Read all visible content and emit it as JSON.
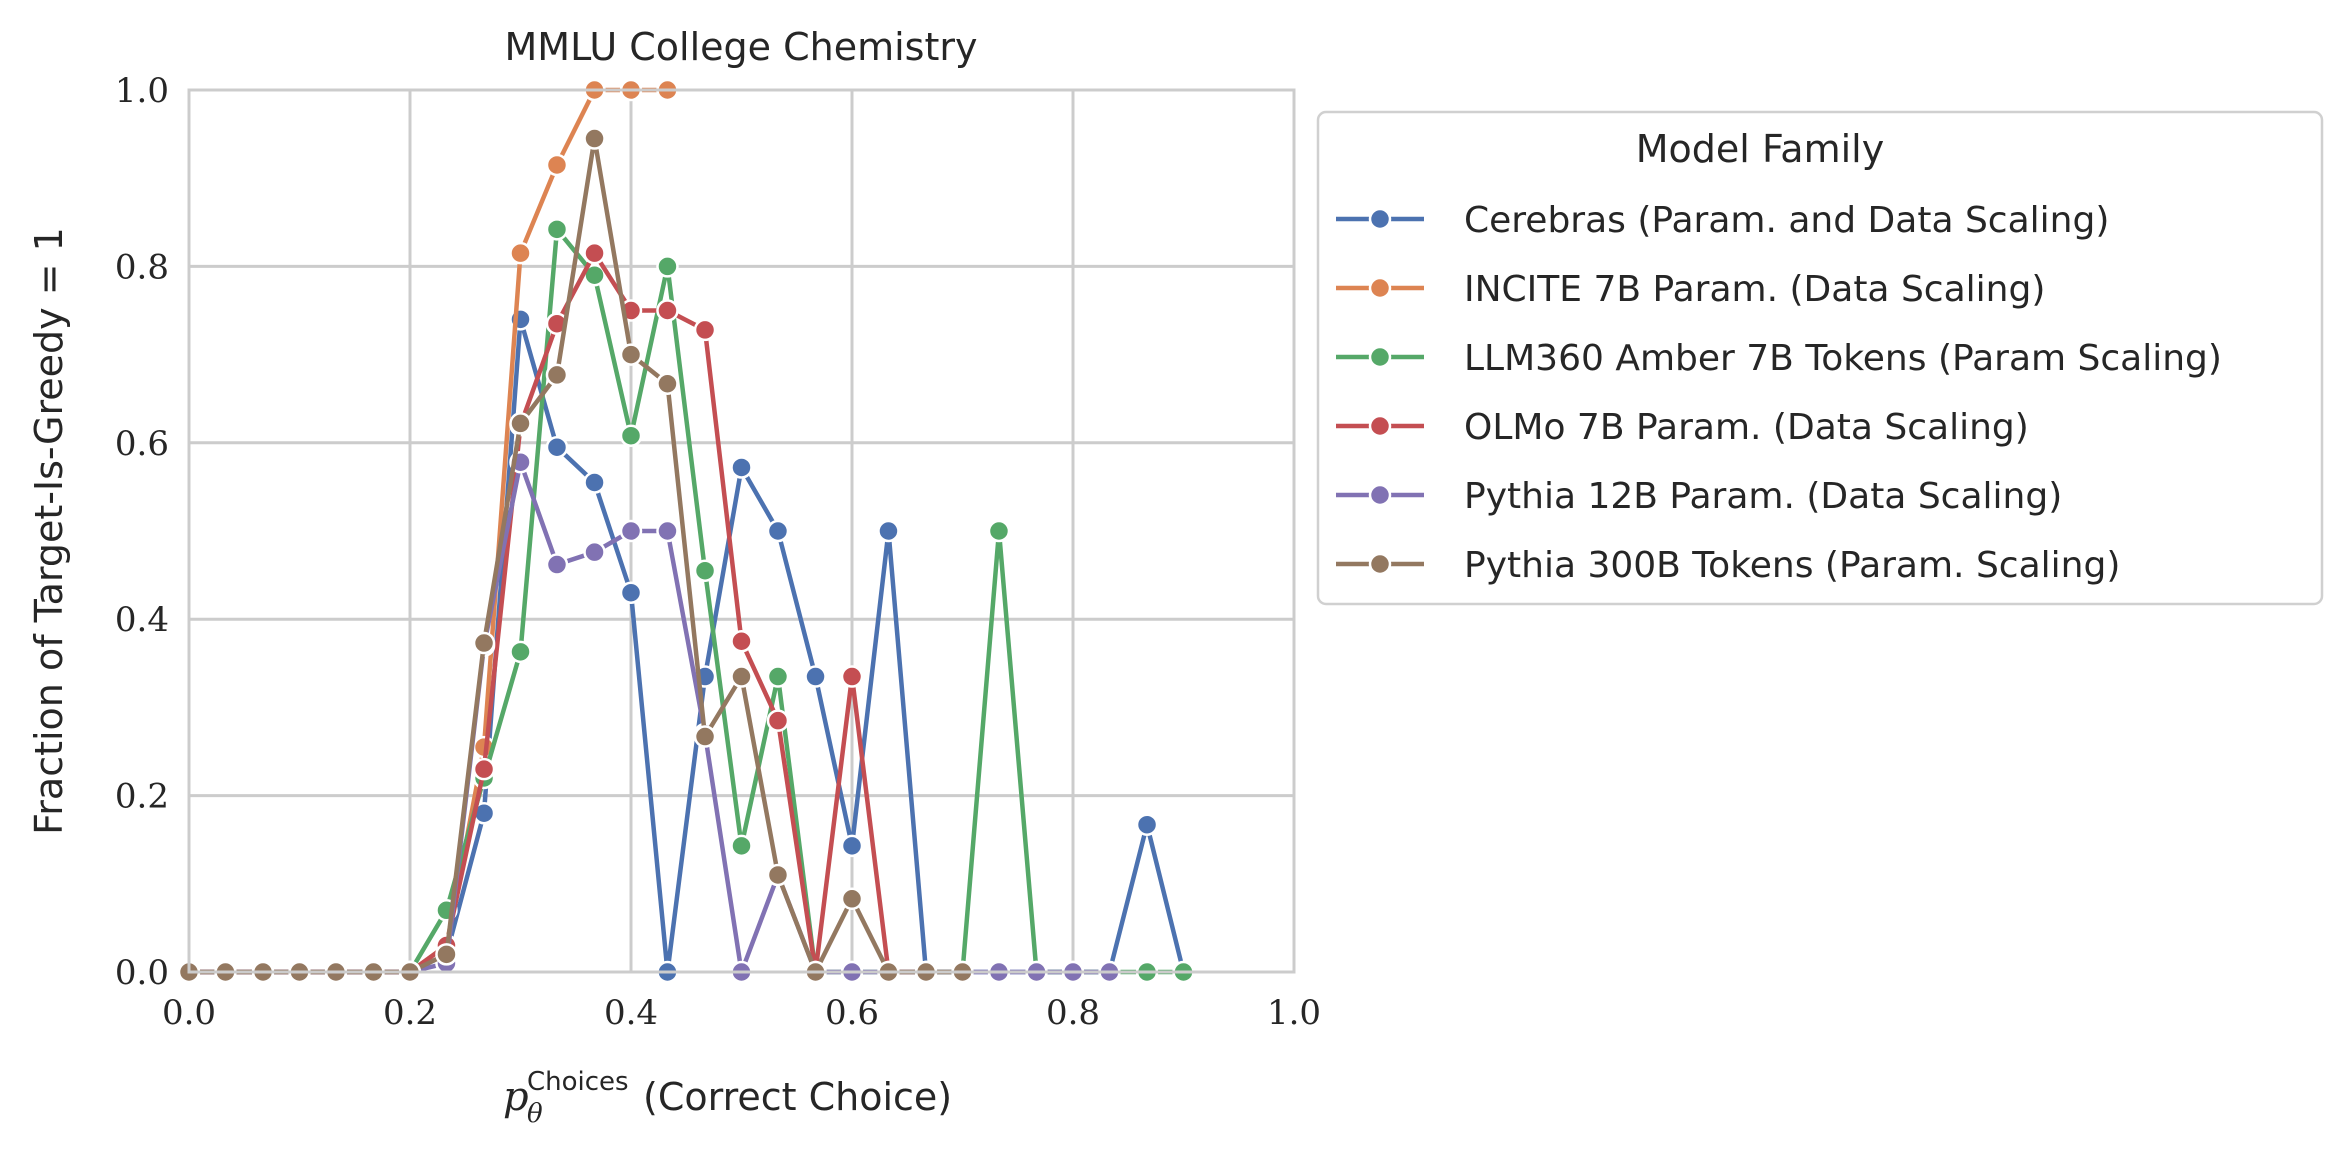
{
  "chart_data": {
    "type": "line",
    "title": "MMLU College Chemistry",
    "xlabel": {
      "symbol": "p",
      "subscript": "θ",
      "superscript": "Choices",
      "text": "(Correct Choice)"
    },
    "ylabel": "Fraction of Target-Is-Greedy = 1",
    "xlim": [
      0.0,
      1.0
    ],
    "ylim": [
      0.0,
      1.0
    ],
    "xticks": [
      "0.0",
      "0.2",
      "0.4",
      "0.6",
      "0.8",
      "1.0"
    ],
    "yticks": [
      "0.0",
      "0.2",
      "0.4",
      "0.6",
      "0.8",
      "1.0"
    ],
    "grid": true,
    "legend": {
      "title": "Model Family",
      "placement": "outside-right-top"
    },
    "series": [
      {
        "name": "Cerebras (Param. and Data Scaling)",
        "color": "#4c72b0",
        "x": [
          0.0,
          0.033,
          0.067,
          0.1,
          0.133,
          0.167,
          0.2,
          0.233,
          0.267,
          0.3,
          0.333,
          0.367,
          0.4,
          0.433,
          0.467,
          0.5,
          0.533,
          0.567,
          0.6,
          0.633,
          0.667,
          0.7,
          0.733,
          0.767,
          0.8,
          0.833,
          0.867,
          0.9
        ],
        "y": [
          0.0,
          0.0,
          0.0,
          0.0,
          0.0,
          0.0,
          0.0,
          0.02,
          0.18,
          0.74,
          0.595,
          0.555,
          0.43,
          0.0,
          0.335,
          0.572,
          0.5,
          0.335,
          0.143,
          0.5,
          0.0,
          0.0,
          0.0,
          0.0,
          0.0,
          0.0,
          0.167,
          0.0
        ]
      },
      {
        "name": "INCITE 7B Param. (Data Scaling)",
        "color": "#dd8452",
        "x": [
          0.0,
          0.033,
          0.067,
          0.1,
          0.133,
          0.167,
          0.2,
          0.233,
          0.267,
          0.3,
          0.333,
          0.367,
          0.4,
          0.433
        ],
        "y": [
          0.0,
          0.0,
          0.0,
          0.0,
          0.0,
          0.0,
          0.0,
          0.03,
          0.255,
          0.815,
          0.915,
          1.0,
          1.0,
          1.0
        ]
      },
      {
        "name": "LLM360 Amber 7B Tokens (Param Scaling)",
        "color": "#55a868",
        "x": [
          0.0,
          0.033,
          0.067,
          0.1,
          0.133,
          0.167,
          0.2,
          0.233,
          0.267,
          0.3,
          0.333,
          0.367,
          0.4,
          0.433,
          0.467,
          0.5,
          0.533,
          0.567,
          0.6,
          0.633,
          0.667,
          0.7,
          0.733,
          0.767,
          0.8,
          0.833,
          0.867,
          0.9
        ],
        "y": [
          0.0,
          0.0,
          0.0,
          0.0,
          0.0,
          0.0,
          0.0,
          0.07,
          0.22,
          0.363,
          0.842,
          0.79,
          0.608,
          0.8,
          0.455,
          0.143,
          0.335,
          0.0,
          0.0,
          0.0,
          0.0,
          0.0,
          0.5,
          0.0,
          0.0,
          0.0,
          0.0,
          0.0
        ]
      },
      {
        "name": "OLMo 7B Param. (Data Scaling)",
        "color": "#c44e52",
        "x": [
          0.0,
          0.033,
          0.067,
          0.1,
          0.133,
          0.167,
          0.2,
          0.233,
          0.267,
          0.3,
          0.333,
          0.367,
          0.4,
          0.433,
          0.467,
          0.5,
          0.533,
          0.567,
          0.6,
          0.633,
          0.667
        ],
        "y": [
          0.0,
          0.0,
          0.0,
          0.0,
          0.0,
          0.0,
          0.0,
          0.03,
          0.23,
          0.62,
          0.735,
          0.815,
          0.75,
          0.75,
          0.728,
          0.375,
          0.285,
          0.0,
          0.335,
          0.0,
          0.0
        ]
      },
      {
        "name": "Pythia 12B Param. (Data Scaling)",
        "color": "#8172b3",
        "x": [
          0.0,
          0.033,
          0.067,
          0.1,
          0.133,
          0.167,
          0.2,
          0.233,
          0.267,
          0.3,
          0.333,
          0.367,
          0.4,
          0.433,
          0.467,
          0.5,
          0.533,
          0.567,
          0.6,
          0.633,
          0.667,
          0.7,
          0.733,
          0.767,
          0.8,
          0.833
        ],
        "y": [
          0.0,
          0.0,
          0.0,
          0.0,
          0.0,
          0.0,
          0.0,
          0.01,
          0.37,
          0.578,
          0.462,
          0.476,
          0.5,
          0.5,
          0.27,
          0.0,
          0.11,
          0.0,
          0.0,
          0.0,
          0.0,
          0.0,
          0.0,
          0.0,
          0.0,
          0.0
        ]
      },
      {
        "name": "Pythia 300B Tokens (Param. Scaling)",
        "color": "#937860",
        "x": [
          0.0,
          0.033,
          0.067,
          0.1,
          0.133,
          0.167,
          0.2,
          0.233,
          0.267,
          0.3,
          0.333,
          0.367,
          0.4,
          0.433,
          0.467,
          0.5,
          0.533,
          0.567,
          0.6,
          0.633,
          0.667,
          0.7
        ],
        "y": [
          0.0,
          0.0,
          0.0,
          0.0,
          0.0,
          0.0,
          0.0,
          0.02,
          0.373,
          0.622,
          0.677,
          0.945,
          0.7,
          0.667,
          0.267,
          0.335,
          0.11,
          0.0,
          0.083,
          0.0,
          0.0,
          0.0
        ]
      }
    ]
  }
}
